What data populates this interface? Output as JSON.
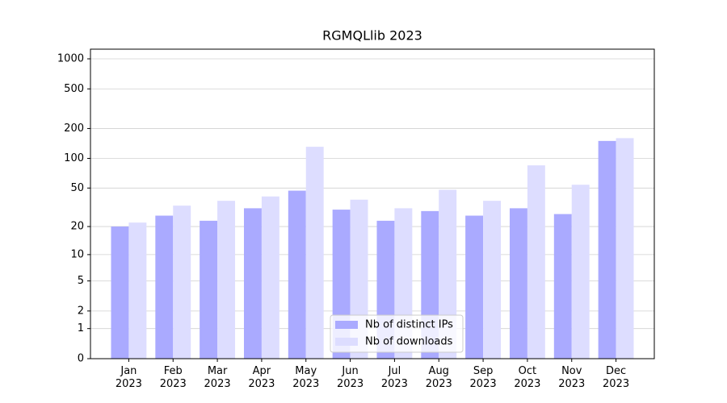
{
  "chart_data": {
    "type": "bar",
    "title": "RGMQLlib 2023",
    "categories": [
      "Jan\n2023",
      "Feb\n2023",
      "Mar\n2023",
      "Apr\n2023",
      "May\n2023",
      "Jun\n2023",
      "Jul\n2023",
      "Aug\n2023",
      "Sep\n2023",
      "Oct\n2023",
      "Nov\n2023",
      "Dec\n2023"
    ],
    "series": [
      {
        "name": "Nb of distinct IPs",
        "color": "#aaaaff",
        "values": [
          20,
          26,
          23,
          31,
          47,
          30,
          23,
          29,
          26,
          31,
          27,
          150
        ]
      },
      {
        "name": "Nb of downloads",
        "color": "#ddddff",
        "values": [
          22,
          33,
          37,
          41,
          131,
          38,
          31,
          48,
          37,
          85,
          54,
          160
        ]
      }
    ],
    "yscale": "log1p",
    "ylim": [
      0,
      1250
    ],
    "yticks": [
      0,
      1,
      2,
      5,
      10,
      20,
      50,
      100,
      200,
      500,
      1000
    ],
    "grid": true,
    "legend": "lower center"
  }
}
